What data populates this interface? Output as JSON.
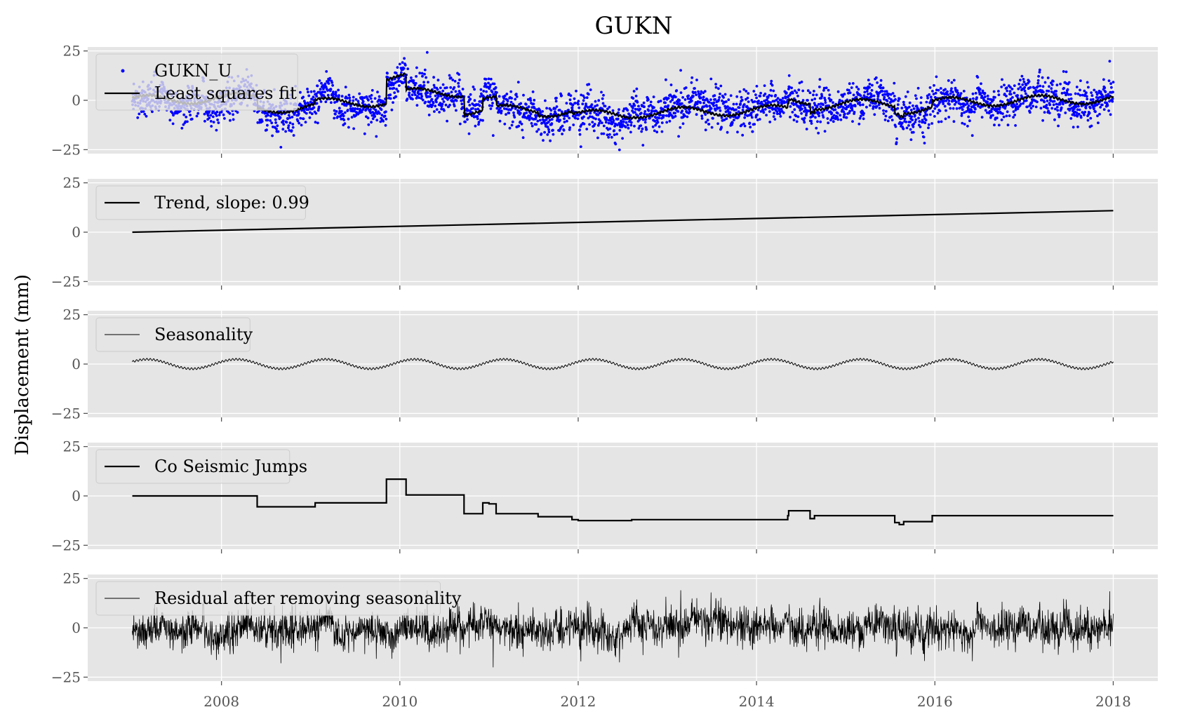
{
  "figure": {
    "title": "GUKN",
    "ylabel": "Displacement (mm)",
    "xlim": [
      2006.5,
      2018.5
    ],
    "xticks": [
      2008,
      2010,
      2012,
      2014,
      2016,
      2018
    ],
    "xtick_labels": [
      "2008",
      "2010",
      "2012",
      "2014",
      "2016",
      "2018"
    ],
    "sharex": true,
    "grid": true,
    "style": "ggplot gray background",
    "colors": {
      "panel_bg": "#e5e5e5",
      "grid": "#ffffff",
      "observed": "#0000ff",
      "line": "#000000",
      "text": "#555555"
    }
  },
  "chart_data": [
    {
      "type": "scatter",
      "panel": "observed",
      "legend_position": "upper-left",
      "ylim": [
        -27,
        27
      ],
      "yticks": [
        -25,
        0,
        25
      ],
      "ytick_labels": [
        "−25",
        "0",
        "25"
      ],
      "series": [
        {
          "name": "GUKN_U",
          "kind": "points",
          "color": "#0000ff",
          "note_values": "daily samples 2007.0–2018.0, approx. 3400 points; values = least squares fit + residual",
          "x": [
            2007.0,
            2007.5,
            2008.0,
            2008.5,
            2009.0,
            2009.5,
            2009.9,
            2010.1,
            2010.5,
            2011.0,
            2011.5,
            2012.0,
            2012.5,
            2013.0,
            2013.5,
            2014.0,
            2014.5,
            2015.0,
            2015.5,
            2016.0,
            2016.5,
            2017.0,
            2017.5,
            2018.0
          ],
          "y": [
            1,
            2,
            -2,
            -4,
            -1,
            0,
            10,
            11,
            3,
            -5,
            -4,
            -9,
            -7,
            -8,
            -5,
            -4,
            -3,
            -2,
            -4,
            -2,
            -3,
            1,
            0,
            0
          ]
        },
        {
          "name": "Least squares fit",
          "kind": "line",
          "color": "#000000",
          "note_values": "sum of trend, seasonality and co-seismic jumps"
        }
      ]
    },
    {
      "type": "line",
      "panel": "trend",
      "legend_position": "upper-left",
      "ylim": [
        -27,
        27
      ],
      "yticks": [
        -25,
        0,
        25
      ],
      "ytick_labels": [
        "−25",
        "0",
        "25"
      ],
      "series": [
        {
          "name": "Trend, slope: 0.99",
          "x": [
            2007.0,
            2018.0
          ],
          "y": [
            0.0,
            10.9
          ]
        }
      ]
    },
    {
      "type": "line",
      "panel": "seasonality",
      "legend_position": "upper-left",
      "ylim": [
        -27,
        27
      ],
      "yticks": [
        -25,
        0,
        25
      ],
      "ytick_labels": [
        "−25",
        "0",
        "25"
      ],
      "series": [
        {
          "name": "Seasonality",
          "amplitude": 2.4,
          "period_years": 1.0,
          "phase_peak_fraction": 0.17,
          "semiannual_ripple_amplitude": 0.5,
          "x_range": [
            2007.0,
            2018.0
          ]
        }
      ]
    },
    {
      "type": "line",
      "panel": "jumps",
      "legend_position": "upper-left",
      "ylim": [
        -27,
        27
      ],
      "yticks": [
        -25,
        0,
        25
      ],
      "ytick_labels": [
        "−25",
        "0",
        "25"
      ],
      "series": [
        {
          "name": "Co Seismic Jumps",
          "step": true,
          "x": [
            2007.0,
            2008.4,
            2009.05,
            2009.85,
            2010.07,
            2010.72,
            2010.93,
            2011.0,
            2011.08,
            2011.55,
            2011.93,
            2012.0,
            2012.6,
            2014.35,
            2014.36,
            2014.6,
            2014.65,
            2014.7,
            2015.55,
            2015.6,
            2015.65,
            2015.97,
            2018.0
          ],
          "y": [
            0,
            -5.5,
            -3.5,
            8.5,
            0.5,
            -9,
            -3.5,
            -4,
            -9,
            -10.5,
            -12,
            -12.5,
            -12,
            -10,
            -7.5,
            -11.5,
            -10,
            -10,
            -13.5,
            -14.5,
            -13,
            -10,
            -10
          ]
        }
      ]
    },
    {
      "type": "line",
      "panel": "residual",
      "legend_position": "upper-left",
      "ylim": [
        -27,
        27
      ],
      "yticks": [
        -25,
        0,
        25
      ],
      "ytick_labels": [
        "−25",
        "0",
        "25"
      ],
      "series": [
        {
          "name": "Residual after removing seasonality",
          "note_values": "dense noise series 2007.0–2018.0, mostly within ±12 mm, extremes near -22 and +18",
          "x": [
            2007.0,
            2008.0,
            2009.0,
            2010.0,
            2011.0,
            2012.0,
            2013.0,
            2014.0,
            2015.0,
            2016.0,
            2017.0,
            2018.0
          ],
          "y": [
            1,
            -2,
            -4,
            1,
            -5,
            -7,
            -6,
            -3,
            -1,
            -2,
            0,
            1
          ]
        }
      ]
    }
  ]
}
